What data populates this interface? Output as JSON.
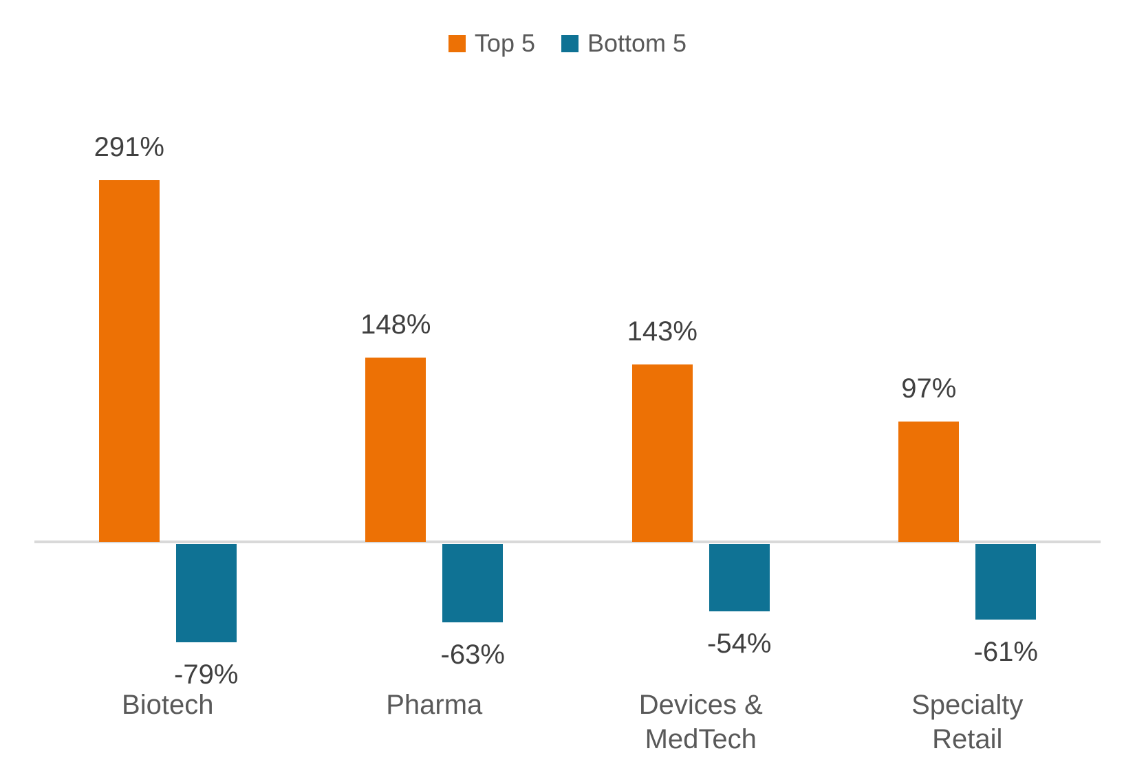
{
  "chart_data": {
    "type": "bar",
    "categories": [
      "Biotech",
      "Pharma",
      "Devices & MedTech",
      "Specialty Retail"
    ],
    "category_lines": [
      [
        "Biotech"
      ],
      [
        "Pharma"
      ],
      [
        "Devices &",
        "MedTech"
      ],
      [
        "Specialty",
        "Retail"
      ]
    ],
    "series": [
      {
        "name": "Top 5",
        "color": "#ED7105",
        "values": [
          291,
          148,
          143,
          97
        ],
        "labels": [
          "291%",
          "148%",
          "143%",
          "97%"
        ]
      },
      {
        "name": "Bottom 5",
        "color": "#0F7294",
        "values": [
          -79,
          -63,
          -54,
          -61
        ],
        "labels": [
          "-79%",
          "-63%",
          "-54%",
          "-61%"
        ]
      }
    ],
    "title": "",
    "xlabel": "",
    "ylabel": "",
    "ylim": [
      -100,
      300
    ],
    "grid": false,
    "legend_position": "top",
    "baseline_color": "#D9D9D9",
    "value_label_color": "#404040",
    "category_label_color": "#595959",
    "legend_text_color": "#595959"
  }
}
